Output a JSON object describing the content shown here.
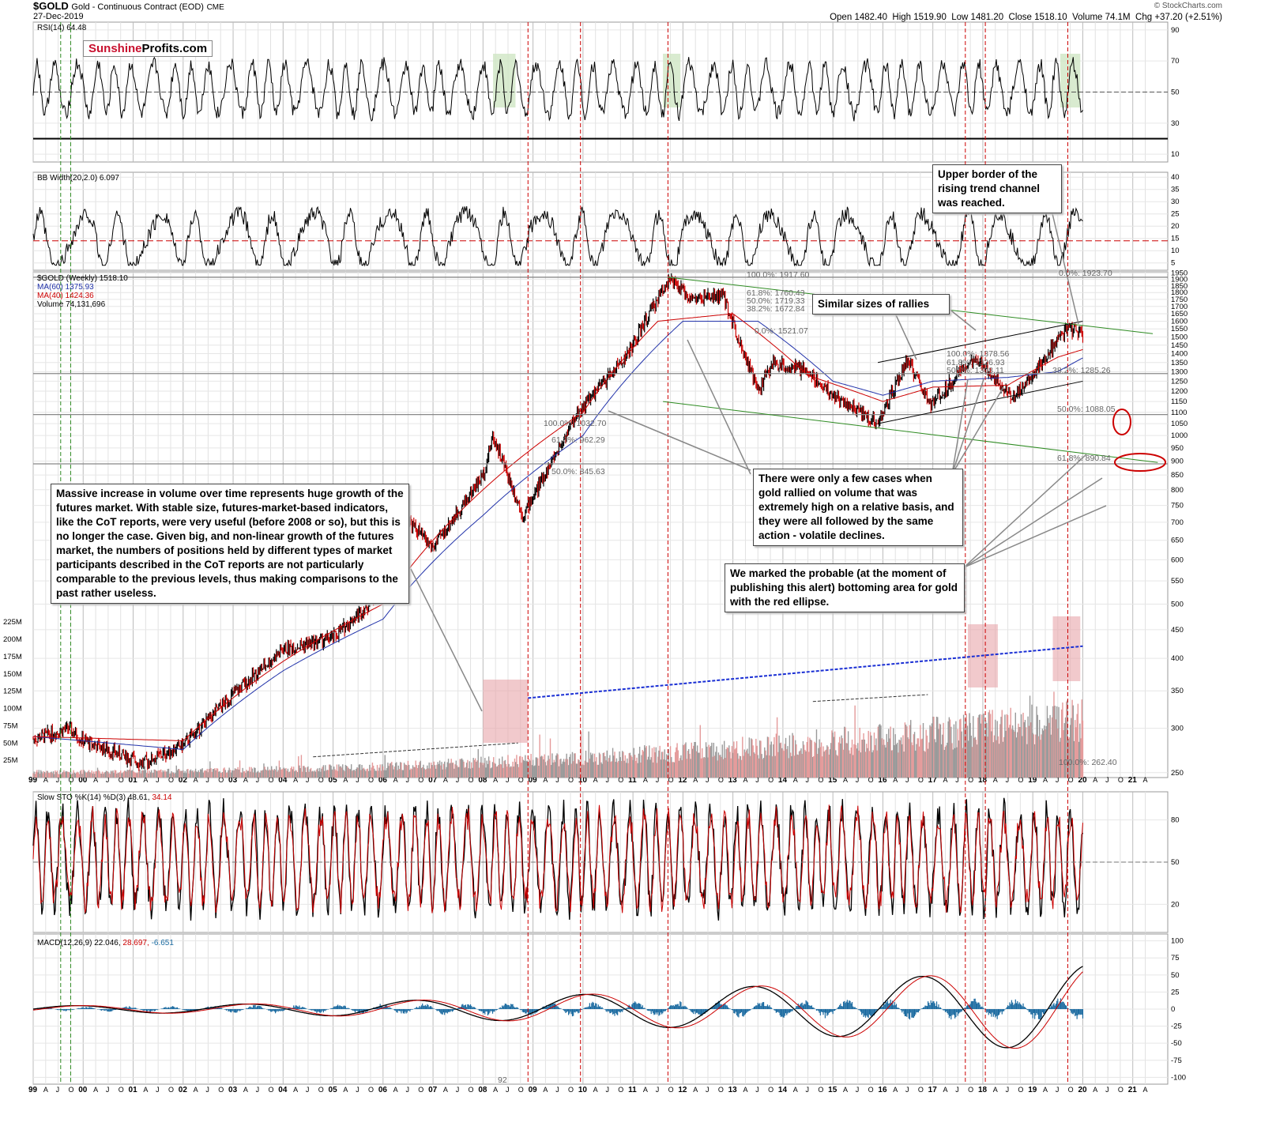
{
  "header": {
    "symbol": "$GOLD",
    "description": "Gold - Continuous Contract (EOD)",
    "exchange": "CME",
    "date": "27-Dec-2019",
    "source": "© StockCharts.com",
    "open_label": "Open",
    "open": "1482.40",
    "high_label": "High",
    "high": "1519.90",
    "low_label": "Low",
    "low": "1481.20",
    "close_label": "Close",
    "close": "1518.10",
    "volume_label": "Volume",
    "volume": "74.1M",
    "chg_label": "Chg",
    "chg": "+37.20 (+2.51%)"
  },
  "logo": {
    "part1": "Sunshine",
    "part2": "Profits.com"
  },
  "panels": {
    "rsi": {
      "label": "RSI(14) 64.48"
    },
    "bbw": {
      "label": "BB Width(20,2.0) 6.097"
    },
    "price": {
      "label": "$GOLD (Weekly) 1518.10",
      "ma60": "MA(60) 1375.93",
      "ma40": "MA(40) 1424.36",
      "volume": "Volume 74,131,696"
    },
    "sto": {
      "label_a": "Slow STO %K(14) %D(3) 48.61,",
      "label_b": "34.14"
    },
    "macd": {
      "label_a": "MACD(12,26,9) 22.046,",
      "label_b": "28.697,",
      "label_c": "-6.651"
    }
  },
  "fib_labels": {
    "a": "100.0%: 1917.60",
    "b": "61.8%: 1760.43",
    "c": "50.0%: 1719.33",
    "d": "38.2%: 1672.84",
    "e": "0.0%: 1521.07",
    "f": "0.0%: 1923.70",
    "g": "100.0%: 1378.56",
    "h": "61.8%: 1326.93",
    "i": "50.0%: 1308.11",
    "j": "38.2%: 1285.26",
    "k": "50.0%: 1088.05",
    "l": "61.8%: 890.84",
    "m": "100.0%: 1032.70",
    "n": "61.8%: 962.29",
    "o": "50.0%: 845.63",
    "p": "100.0%: 262.40"
  },
  "annotations": {
    "trend_channel": "Upper border of the rising trend channel was reached.",
    "similar_rallies": "Similar sizes of rallies",
    "volume_growth": "Massive increase in volume over time represents huge growth of the futures market. With stable size, futures-market-based indicators, like the CoT reports, were very useful (before 2008 or so), but this is no longer the case. Given big, and non-linear growth of the futures market, the numbers of positions held by different types of market participants described in the CoT reports are not particularly comparable to the previous levels, thus making comparisons to the past rather useless.",
    "high_volume": "There were only a few cases when gold rallied on volume that was extremely high on a relative basis, and they were all followed by the same action - volatile declines.",
    "bottom_area": "We marked the probable (at the moment of publishing this alert) bottoming area for gold with the red ellipse."
  },
  "misc_labels": {
    "macd_tick": "92"
  },
  "colors": {
    "up": "#000000",
    "down": "#cc0000",
    "ma60": "#2233aa",
    "ma40": "#cc0000",
    "vol_up": "#9a9a9a",
    "vol_down": "#e49a9a",
    "highlight_red": "#e8a5aa",
    "highlight_green": "#cfe6c4",
    "channel_green": "#2e8b22",
    "trend_blue": "#1a2fd4",
    "grid": "#cccccc"
  },
  "chart_data": {
    "type": "line",
    "title": "$GOLD Gold - Continuous Contract (EOD) CME",
    "x_tick_labels": [
      "99",
      "A",
      "J",
      "O",
      "00",
      "A",
      "J",
      "O",
      "01",
      "A",
      "J",
      "O",
      "02",
      "A",
      "J",
      "O",
      "03",
      "A",
      "J",
      "O",
      "04",
      "A",
      "J",
      "O",
      "05",
      "A",
      "J",
      "O",
      "06",
      "A",
      "J",
      "O",
      "07",
      "A",
      "J",
      "O",
      "08",
      "A",
      "J",
      "O",
      "09",
      "A",
      "J",
      "O",
      "10",
      "A",
      "J",
      "O",
      "11",
      "A",
      "J",
      "O",
      "12",
      "A",
      "J",
      "O",
      "13",
      "A",
      "J",
      "O",
      "14",
      "A",
      "J",
      "O",
      "15",
      "A",
      "J",
      "O",
      "16",
      "A",
      "J",
      "O",
      "17",
      "A",
      "J",
      "O",
      "18",
      "A",
      "J",
      "O",
      "19",
      "A",
      "J",
      "O",
      "20",
      "A",
      "J",
      "O",
      "21",
      "A"
    ],
    "price_axis": {
      "scale": "log",
      "ticks": [
        250,
        300,
        350,
        400,
        450,
        500,
        550,
        600,
        650,
        700,
        750,
        800,
        850,
        900,
        950,
        1000,
        1050,
        1100,
        1150,
        1200,
        1250,
        1300,
        1350,
        1400,
        1450,
        1500,
        1550,
        1600,
        1650,
        1700,
        1750,
        1800,
        1850,
        1900,
        1950
      ]
    },
    "volume_axis": {
      "ticks": [
        "25M",
        "50M",
        "75M",
        "100M",
        "125M",
        "150M",
        "175M",
        "200M",
        "225M"
      ]
    },
    "rsi_axis": {
      "ticks": [
        10,
        30,
        50,
        70,
        90
      ]
    },
    "bbw_axis": {
      "ticks": [
        5,
        10,
        15,
        20,
        25,
        30,
        35,
        40
      ]
    },
    "sto_axis": {
      "ticks": [
        20,
        50,
        80
      ]
    },
    "macd_axis": {
      "ticks": [
        -100,
        -75,
        -50,
        -25,
        0,
        25,
        50,
        75,
        100
      ]
    },
    "series": [
      {
        "name": "$GOLD (Weekly)",
        "points": [
          [
            1999.0,
            287
          ],
          [
            1999.7,
            300
          ],
          [
            2000.0,
            285
          ],
          [
            2001.2,
            260
          ],
          [
            2002.0,
            280
          ],
          [
            2003.0,
            345
          ],
          [
            2004.0,
            415
          ],
          [
            2005.0,
            435
          ],
          [
            2006.0,
            530
          ],
          [
            2006.4,
            720
          ],
          [
            2007.0,
            630
          ],
          [
            2008.0,
            850
          ],
          [
            2008.2,
            1000
          ],
          [
            2008.8,
            720
          ],
          [
            2009.9,
            1100
          ],
          [
            2010.9,
            1400
          ],
          [
            2011.7,
            1900
          ],
          [
            2012.2,
            1750
          ],
          [
            2012.8,
            1780
          ],
          [
            2013.5,
            1200
          ],
          [
            2013.8,
            1350
          ],
          [
            2014.5,
            1300
          ],
          [
            2015.0,
            1180
          ],
          [
            2015.9,
            1050
          ],
          [
            2016.5,
            1365
          ],
          [
            2016.95,
            1130
          ],
          [
            2017.7,
            1350
          ],
          [
            2018.0,
            1340
          ],
          [
            2018.6,
            1170
          ],
          [
            2019.0,
            1285
          ],
          [
            2019.7,
            1560
          ],
          [
            2020.0,
            1518
          ]
        ]
      },
      {
        "name": "MA(60)",
        "points": [
          [
            1999.0,
            290
          ],
          [
            2002.0,
            275
          ],
          [
            2004.0,
            380
          ],
          [
            2006.0,
            470
          ],
          [
            2008.0,
            720
          ],
          [
            2010.0,
            1000
          ],
          [
            2012.0,
            1600
          ],
          [
            2013.5,
            1600
          ],
          [
            2015.0,
            1250
          ],
          [
            2016.0,
            1180
          ],
          [
            2017.0,
            1250
          ],
          [
            2018.5,
            1270
          ],
          [
            2019.5,
            1300
          ],
          [
            2020.0,
            1376
          ]
        ]
      },
      {
        "name": "MA(40)",
        "points": [
          [
            1999.0,
            290
          ],
          [
            2002.0,
            285
          ],
          [
            2004.0,
            395
          ],
          [
            2006.0,
            500
          ],
          [
            2008.0,
            800
          ],
          [
            2010.0,
            1100
          ],
          [
            2011.5,
            1600
          ],
          [
            2013.0,
            1650
          ],
          [
            2014.5,
            1280
          ],
          [
            2016.0,
            1150
          ],
          [
            2017.0,
            1220
          ],
          [
            2018.5,
            1230
          ],
          [
            2019.5,
            1380
          ],
          [
            2020.0,
            1424
          ]
        ]
      }
    ],
    "rsi_last": 64.48,
    "bb_width_last": 6.097,
    "sto_k_last": 48.61,
    "sto_d_last": 34.14,
    "macd_last": 22.046,
    "macd_signal_last": 28.697,
    "macd_hist_last": -6.651
  }
}
